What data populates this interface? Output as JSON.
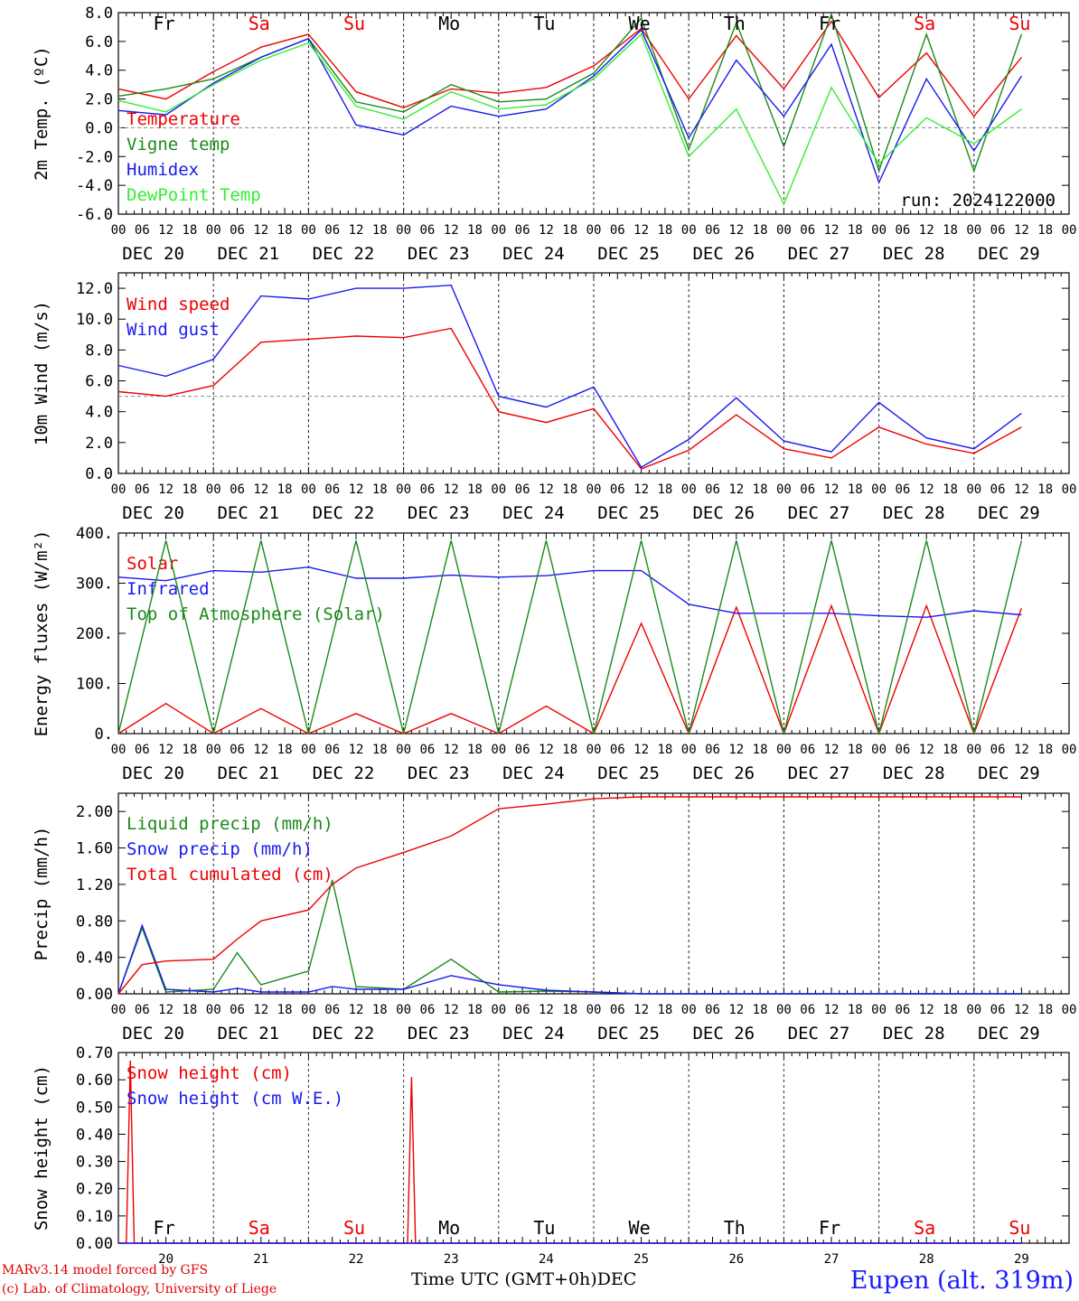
{
  "meta": {
    "credit_line1": "MARv3.14 model forced by GFS",
    "credit_line2": "(c) Lab. of Climatology, University of Liege",
    "x_axis_title": "Time UTC (GMT+0h)",
    "month_label": "DEC",
    "station": "Eupen (alt. 319m)",
    "run_label": "run: 2024122000"
  },
  "colors": {
    "red": "#ee0000",
    "green": "#1a8a1a",
    "blue": "#1a1aee",
    "lightgreen": "#33ee33",
    "grid": "#555555"
  },
  "axis": {
    "hours": [
      "00",
      "06",
      "12",
      "18"
    ],
    "end_hour": "00",
    "dates": [
      "DEC 20",
      "DEC 21",
      "DEC 22",
      "DEC 23",
      "DEC 24",
      "DEC 25",
      "DEC 26",
      "DEC 27",
      "DEC 28",
      "DEC 29"
    ],
    "day_numbers": [
      "20",
      "21",
      "22",
      "23",
      "24",
      "25",
      "26",
      "27",
      "28",
      "29"
    ],
    "weekdays": [
      "Fr",
      "Sa",
      "Su",
      "Mo",
      "Tu",
      "We",
      "Th",
      "Fr",
      "Sa",
      "Su"
    ],
    "weekend_flags": [
      false,
      true,
      true,
      false,
      false,
      false,
      false,
      false,
      true,
      true
    ]
  },
  "chart_data": [
    {
      "type": "line",
      "ylabel": "2m Temp. (ºC)",
      "ylim": [
        -6,
        8
      ],
      "yticks": [
        "8.0",
        "6.0",
        "4.0",
        "2.0",
        "0.0",
        "-2.0",
        "-4.0",
        "-6.0"
      ],
      "reference_line": 0,
      "x_unit": "hours since DEC 20 00 UTC",
      "x": [
        0,
        12,
        24,
        36,
        48,
        60,
        72,
        84,
        96,
        108,
        120,
        132,
        144,
        156,
        168,
        180,
        192,
        204,
        216,
        228
      ],
      "series": [
        {
          "name": "Temperature",
          "color": "red",
          "values": [
            2.7,
            2.0,
            3.9,
            5.6,
            6.5,
            2.5,
            1.4,
            2.7,
            2.4,
            2.8,
            4.3,
            6.9,
            2.0,
            6.4,
            2.7,
            7.4,
            2.1,
            5.2,
            0.8,
            4.9
          ]
        },
        {
          "name": "Vigne temp",
          "color": "green",
          "values": [
            2.2,
            2.7,
            3.4,
            4.9,
            6.2,
            1.8,
            1.1,
            3.0,
            1.8,
            2.0,
            3.8,
            7.6,
            -1.5,
            7.3,
            -1.3,
            7.9,
            -3.0,
            6.5,
            -3.0,
            6.5
          ]
        },
        {
          "name": "Humidex",
          "color": "blue",
          "values": [
            1.2,
            0.9,
            3.1,
            4.9,
            6.2,
            0.2,
            -0.5,
            1.5,
            0.8,
            1.3,
            3.6,
            6.8,
            -0.7,
            4.7,
            0.8,
            5.8,
            -3.8,
            3.4,
            -1.6,
            3.6
          ]
        },
        {
          "name": "DewPoint Temp",
          "color": "lightgreen",
          "values": [
            1.9,
            1.1,
            3.0,
            4.7,
            5.9,
            1.5,
            0.6,
            2.5,
            1.3,
            1.6,
            3.4,
            6.5,
            -2.0,
            1.3,
            -5.3,
            2.8,
            -2.5,
            0.7,
            -1.1,
            1.3
          ]
        }
      ]
    },
    {
      "type": "line",
      "ylabel": "10m Wind (m/s)",
      "ylim": [
        0,
        13
      ],
      "yticks": [
        "12.0",
        "10.0",
        "8.0",
        "6.0",
        "4.0",
        "2.0",
        "0.0"
      ],
      "reference_line": 5,
      "x": [
        0,
        12,
        24,
        36,
        48,
        60,
        72,
        84,
        96,
        108,
        120,
        132,
        144,
        156,
        168,
        180,
        192,
        204,
        216,
        228
      ],
      "series": [
        {
          "name": "Wind speed",
          "color": "red",
          "values": [
            5.3,
            5.0,
            5.7,
            8.5,
            8.7,
            8.9,
            8.8,
            9.4,
            4.0,
            3.3,
            4.2,
            0.3,
            1.5,
            3.8,
            1.6,
            1.0,
            3.0,
            1.9,
            1.3,
            3.0
          ]
        },
        {
          "name": "Wind gust",
          "color": "blue",
          "values": [
            7.0,
            6.3,
            7.4,
            11.5,
            11.3,
            12.0,
            12.0,
            12.2,
            5.0,
            4.3,
            5.6,
            0.4,
            2.2,
            4.9,
            2.1,
            1.4,
            4.6,
            2.3,
            1.6,
            3.9
          ]
        }
      ]
    },
    {
      "type": "line",
      "ylabel": "Energy fluxes (W/m²)",
      "ylim": [
        0,
        400
      ],
      "yticks": [
        "400.",
        "300.",
        "200.",
        "100.",
        "0."
      ],
      "x": [
        0,
        12,
        24,
        36,
        48,
        60,
        72,
        84,
        96,
        108,
        120,
        132,
        144,
        156,
        168,
        180,
        192,
        204,
        216,
        228
      ],
      "series": [
        {
          "name": "Solar",
          "color": "red",
          "values": [
            0,
            60,
            0,
            50,
            0,
            40,
            0,
            40,
            0,
            55,
            0,
            220,
            0,
            252,
            0,
            255,
            0,
            255,
            0,
            250
          ]
        },
        {
          "name": "Infrared",
          "color": "blue",
          "values": [
            312,
            305,
            325,
            322,
            332,
            310,
            310,
            316,
            312,
            315,
            325,
            325,
            258,
            240,
            240,
            240,
            235,
            232,
            245,
            237
          ]
        },
        {
          "name": "Top of Atmosphere (Solar)",
          "color": "green",
          "values": [
            0,
            385,
            0,
            385,
            0,
            385,
            0,
            385,
            0,
            385,
            0,
            385,
            0,
            385,
            0,
            385,
            0,
            385,
            0,
            385
          ]
        }
      ]
    },
    {
      "type": "line",
      "ylabel": "Precip (mm/h)",
      "ylim": [
        0,
        2.2
      ],
      "yticks": [
        "2.00",
        "1.60",
        "1.20",
        "0.80",
        "0.40",
        "0.00"
      ],
      "x": [
        0,
        6,
        12,
        24,
        30,
        36,
        48,
        54,
        60,
        72,
        84,
        96,
        108,
        120,
        132,
        144,
        228
      ],
      "series": [
        {
          "name": "Liquid precip (mm/h)",
          "color": "green",
          "values": [
            0.0,
            0.72,
            0.02,
            0.05,
            0.45,
            0.1,
            0.25,
            1.25,
            0.08,
            0.05,
            0.38,
            0.02,
            0.03,
            0.02,
            0.0,
            0.0,
            0.0
          ]
        },
        {
          "name": "Snow precip (mm/h)",
          "color": "blue",
          "values": [
            0.0,
            0.75,
            0.05,
            0.02,
            0.06,
            0.02,
            0.02,
            0.08,
            0.05,
            0.05,
            0.2,
            0.1,
            0.04,
            0.02,
            0.0,
            0.0,
            0.0
          ]
        },
        {
          "name": "Total cumulated (cm)",
          "color": "red",
          "values": [
            0.0,
            0.32,
            0.36,
            0.38,
            0.6,
            0.8,
            0.92,
            1.2,
            1.38,
            1.55,
            1.73,
            2.03,
            2.08,
            2.14,
            2.16,
            2.16,
            2.16
          ]
        }
      ]
    },
    {
      "type": "line",
      "ylabel": "Snow height (cm)",
      "ylim": [
        0,
        0.7
      ],
      "yticks": [
        "0.70",
        "0.60",
        "0.50",
        "0.40",
        "0.30",
        "0.20",
        "0.10",
        "0.00"
      ],
      "x": [
        0,
        1,
        2,
        3,
        4,
        5,
        72,
        73,
        74,
        75,
        76,
        228
      ],
      "series": [
        {
          "name": "Snow height (cm)",
          "color": "red",
          "values": [
            0,
            0,
            0,
            0.67,
            0,
            0,
            0,
            0,
            0.61,
            0,
            0,
            0
          ]
        },
        {
          "name": "Snow height (cm W.E.)",
          "color": "blue",
          "values": [
            0,
            0,
            0,
            0,
            0,
            0,
            0,
            0,
            0,
            0,
            0,
            0
          ]
        }
      ]
    }
  ]
}
